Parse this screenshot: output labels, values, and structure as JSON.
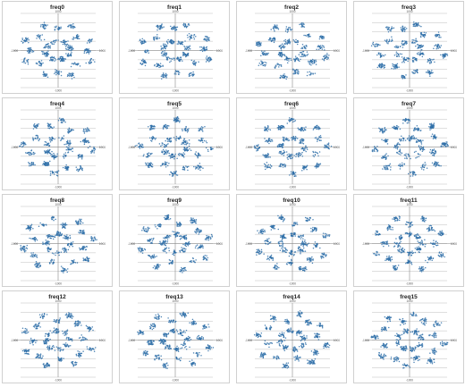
{
  "figure": {
    "point_color": "#2e6fa8",
    "gridline_color": "#bfbfbf",
    "axis_color": "#888888"
  },
  "chart_data": [
    {
      "type": "scatter",
      "title": "freq0",
      "xlim": [
        -1000,
        1000
      ],
      "ylim": [
        -1000,
        1000
      ],
      "x_ticks": [
        "-1000",
        "1000"
      ],
      "y_ticks": [
        "1000",
        "-1000"
      ],
      "grid": "horizontal",
      "points": "approx. 500 points in a ring-shaped cluster pattern, |x| and |y| up to about 900"
    },
    {
      "type": "scatter",
      "title": "freq1",
      "xlim": [
        -1000,
        1000
      ],
      "ylim": [
        -1000,
        1000
      ],
      "x_ticks": [
        "-1000",
        "1000"
      ],
      "y_ticks": [
        "1000",
        "-1000"
      ],
      "grid": "horizontal",
      "points": "approx. 500 points in a ring-shaped cluster pattern, |x| and |y| up to about 900"
    },
    {
      "type": "scatter",
      "title": "freq2",
      "xlim": [
        -1000,
        1000
      ],
      "ylim": [
        -1000,
        1000
      ],
      "x_ticks": [
        "-1000",
        "1000"
      ],
      "y_ticks": [
        "1000",
        "-1000"
      ],
      "grid": "horizontal",
      "points": "approx. 500 points in a ring-shaped cluster pattern, |x| and |y| up to about 900"
    },
    {
      "type": "scatter",
      "title": "freq3",
      "xlim": [
        -1000,
        1000
      ],
      "ylim": [
        -1000,
        1000
      ],
      "x_ticks": [
        "-1000",
        "1000"
      ],
      "y_ticks": [
        "1000",
        "-1000"
      ],
      "grid": "horizontal",
      "points": "approx. 500 points in a ring-shaped cluster pattern, |x| and |y| up to about 900"
    },
    {
      "type": "scatter",
      "title": "freq4",
      "xlim": [
        -1000,
        1000
      ],
      "ylim": [
        -1000,
        1000
      ],
      "x_ticks": [
        "-1000",
        "1000"
      ],
      "y_ticks": [
        "1000",
        "-1000"
      ],
      "grid": "horizontal",
      "points": "approx. 500 points in a ring-shaped cluster pattern, |x| and |y| up to about 900"
    },
    {
      "type": "scatter",
      "title": "freq5",
      "xlim": [
        -1000,
        1000
      ],
      "ylim": [
        -1000,
        1000
      ],
      "x_ticks": [
        "-1000",
        "1000"
      ],
      "y_ticks": [
        "1000",
        "-1000"
      ],
      "grid": "horizontal",
      "points": "approx. 500 points in a ring-shaped cluster pattern, |x| and |y| up to about 900"
    },
    {
      "type": "scatter",
      "title": "freq6",
      "xlim": [
        -1000,
        1000
      ],
      "ylim": [
        -1000,
        1000
      ],
      "x_ticks": [
        "-1000",
        "1000"
      ],
      "y_ticks": [
        "1000",
        "-1000"
      ],
      "grid": "horizontal",
      "points": "approx. 500 points in a ring-shaped cluster pattern, |x| and |y| up to about 900"
    },
    {
      "type": "scatter",
      "title": "freq7",
      "xlim": [
        -1000,
        1000
      ],
      "ylim": [
        -1000,
        1000
      ],
      "x_ticks": [
        "-1000",
        "1000"
      ],
      "y_ticks": [
        "1000",
        "-1000"
      ],
      "grid": "horizontal",
      "points": "approx. 500 points in a ring-shaped cluster pattern, |x| and |y| up to about 900"
    },
    {
      "type": "scatter",
      "title": "freq8",
      "xlim": [
        -1000,
        1000
      ],
      "ylim": [
        -1000,
        1000
      ],
      "x_ticks": [
        "-1000",
        "1000"
      ],
      "y_ticks": [
        "1000",
        "-1000"
      ],
      "grid": "horizontal",
      "points": "approx. 500 points in a ring-shaped cluster pattern, |x| and |y| up to about 900"
    },
    {
      "type": "scatter",
      "title": "freq9",
      "xlim": [
        -1000,
        1000
      ],
      "ylim": [
        -1000,
        1000
      ],
      "x_ticks": [
        "-1000",
        "1000"
      ],
      "y_ticks": [
        "1000",
        "-1000"
      ],
      "grid": "horizontal",
      "points": "approx. 500 points in a ring-shaped cluster pattern, |x| and |y| up to about 900"
    },
    {
      "type": "scatter",
      "title": "freq10",
      "xlim": [
        -1000,
        1000
      ],
      "ylim": [
        -1000,
        1000
      ],
      "x_ticks": [
        "-1000",
        "1000"
      ],
      "y_ticks": [
        "1000",
        "-1000"
      ],
      "grid": "horizontal",
      "points": "approx. 500 points in a ring-shaped cluster pattern, |x| and |y| up to about 900"
    },
    {
      "type": "scatter",
      "title": "freq11",
      "xlim": [
        -1000,
        1000
      ],
      "ylim": [
        -1000,
        1000
      ],
      "x_ticks": [
        "-1000",
        "1000"
      ],
      "y_ticks": [
        "1000",
        "-1000"
      ],
      "grid": "horizontal",
      "points": "approx. 500 points in a ring-shaped cluster pattern, |x| and |y| up to about 900"
    },
    {
      "type": "scatter",
      "title": "freq12",
      "xlim": [
        -1000,
        1000
      ],
      "ylim": [
        -1000,
        1000
      ],
      "x_ticks": [
        "-1000",
        "1000"
      ],
      "y_ticks": [
        "1000",
        "-1000"
      ],
      "grid": "horizontal",
      "points": "approx. 500 points in a ring-shaped cluster pattern, |x| and |y| up to about 900"
    },
    {
      "type": "scatter",
      "title": "freq13",
      "xlim": [
        -1000,
        1000
      ],
      "ylim": [
        -1000,
        1000
      ],
      "x_ticks": [
        "-1000",
        "1000"
      ],
      "y_ticks": [
        "1000",
        "-1000"
      ],
      "grid": "horizontal",
      "points": "approx. 500 points in a ring-shaped cluster pattern, |x| and |y| up to about 900"
    },
    {
      "type": "scatter",
      "title": "freq14",
      "xlim": [
        -1000,
        1000
      ],
      "ylim": [
        -1000,
        1000
      ],
      "x_ticks": [
        "-1000",
        "1000"
      ],
      "y_ticks": [
        "1000",
        "-1000"
      ],
      "grid": "horizontal",
      "points": "approx. 500 points in a ring-shaped cluster pattern, |x| and |y| up to about 900"
    },
    {
      "type": "scatter",
      "title": "freq15",
      "xlim": [
        -1000,
        1000
      ],
      "ylim": [
        -1000,
        1000
      ],
      "x_ticks": [
        "-1000",
        "1000"
      ],
      "y_ticks": [
        "1000",
        "-1000"
      ],
      "grid": "horizontal",
      "points": "approx. 500 points in a ring-shaped cluster pattern, |x| and |y| up to about 900"
    }
  ]
}
